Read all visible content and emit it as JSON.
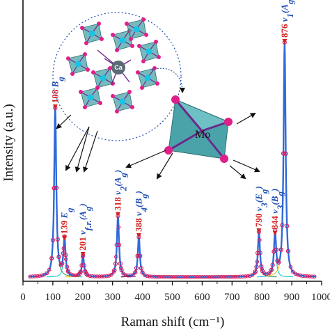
{
  "chart_data": {
    "type": "line",
    "xlabel": "Raman shift (cm⁻¹)",
    "ylabel": "Intensity (a.u.)",
    "xlim": [
      0,
      1000
    ],
    "x_ticks": [
      "0",
      "100",
      "200",
      "300",
      "400",
      "500",
      "600",
      "700",
      "800",
      "900",
      "1000"
    ],
    "grid": false,
    "series": [
      {
        "values": [
          {
            "x": 108,
            "y": 0.72
          },
          {
            "x": 139,
            "y": 0.16
          },
          {
            "x": 201,
            "y": 0.09
          },
          {
            "x": 318,
            "y": 0.26
          },
          {
            "x": 388,
            "y": 0.17
          },
          {
            "x": 790,
            "y": 0.19
          },
          {
            "x": 844,
            "y": 0.18
          },
          {
            "x": 876,
            "y": 1.0
          }
        ]
      }
    ],
    "annotations": [
      {
        "x": 108,
        "value": "108",
        "mode": "B",
        "sub": "g"
      },
      {
        "x": 139,
        "value": "139",
        "mode": "E",
        "sub": "g"
      },
      {
        "x": 201,
        "value": "201",
        "mode": "ν",
        "sub": "f.r.",
        "sym": "A",
        "symsub": "g"
      },
      {
        "x": 318,
        "value": "318",
        "mode": "ν",
        "sub": "2",
        "sym": "A",
        "symsub": "g"
      },
      {
        "x": 388,
        "value": "388",
        "mode": "ν",
        "sub": "4",
        "sym": "B",
        "symsub": "g"
      },
      {
        "x": 790,
        "value": "790",
        "mode": "ν",
        "sub": "3",
        "sym": "E",
        "symsub": "g"
      },
      {
        "x": 844,
        "value": "844",
        "mode": "ν",
        "sub": "3",
        "sym": "B",
        "symsub": "g"
      },
      {
        "x": 876,
        "value": "876",
        "mode": "ν",
        "sub": "1",
        "sym": "A",
        "symsub": "g"
      }
    ],
    "colors": {
      "fit": "#2f6ad9",
      "observed_points": "#d81b60",
      "components": [
        "#2e8b57",
        "#00c2c7",
        "#e6c200",
        "#8e44ad",
        "#000000"
      ],
      "peak_labels": "#d42020",
      "mode_labels": "#1f4fb5"
    }
  },
  "structure_inset": {
    "mo_label": "Mo",
    "ca_label": "Ca",
    "colors": {
      "polyhedra": "#4aa3a8",
      "oxygen": "#e0208a",
      "metal": "#19c4e6",
      "calcium": "#5a6b75"
    }
  }
}
